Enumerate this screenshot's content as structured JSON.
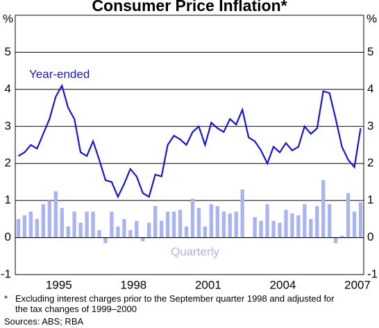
{
  "chart_data": {
    "type": "bar-line",
    "title": "Consumer Price Inflation*",
    "y_unit": "%",
    "annotations": [
      "Year-ended",
      "Quarterly"
    ],
    "footnote_marker": "*",
    "footnote": "Excluding interest charges prior to the September quarter 1998 and adjusted for the tax changes of 1999–2000",
    "source": "Sources: ABS; RBA",
    "categories": [
      null,
      null,
      null,
      null,
      null,
      null,
      null,
      "1995",
      null,
      null,
      null,
      null,
      null,
      null,
      null,
      null,
      null,
      null,
      null,
      "1998",
      null,
      null,
      null,
      null,
      null,
      null,
      null,
      null,
      null,
      null,
      null,
      "2001",
      null,
      null,
      null,
      null,
      null,
      null,
      null,
      null,
      null,
      null,
      null,
      "2004",
      null,
      null,
      null,
      null,
      null,
      null,
      null,
      null,
      null,
      null,
      null,
      "2007"
    ],
    "series": [
      {
        "name": "Quarterly",
        "type": "bar",
        "color": "#a9b4f0",
        "values": [
          0.5,
          0.6,
          0.7,
          0.5,
          0.9,
          1.0,
          1.25,
          0.8,
          0.3,
          0.7,
          0.4,
          0.7,
          0.7,
          0.2,
          -0.15,
          0.7,
          0.3,
          0.5,
          0.2,
          0.45,
          -0.1,
          0.4,
          0.85,
          0.45,
          0.7,
          0.7,
          0.75,
          0.3,
          1.05,
          0.8,
          0.3,
          0.9,
          0.85,
          0.7,
          0.65,
          0.7,
          1.3,
          0.0,
          0.55,
          0.45,
          0.9,
          0.45,
          0.4,
          0.75,
          0.65,
          0.6,
          0.9,
          0.5,
          0.85,
          1.55,
          0.9,
          -0.15,
          0.05,
          1.2,
          0.7,
          0.95
        ]
      },
      {
        "name": "Year-ended",
        "type": "line",
        "color": "#1414d2",
        "values": [
          2.2,
          2.3,
          2.5,
          2.4,
          2.8,
          3.2,
          3.8,
          4.1,
          3.5,
          3.2,
          2.3,
          2.2,
          2.6,
          2.1,
          1.55,
          1.5,
          1.1,
          1.45,
          1.85,
          1.65,
          1.2,
          1.1,
          1.7,
          1.65,
          2.5,
          2.75,
          2.65,
          2.5,
          2.85,
          3.0,
          2.5,
          3.1,
          2.95,
          2.85,
          3.2,
          3.05,
          3.45,
          2.7,
          2.6,
          2.35,
          2.0,
          2.45,
          2.3,
          2.55,
          2.35,
          2.45,
          3.0,
          2.8,
          2.95,
          3.95,
          3.9,
          3.2,
          2.45,
          2.1,
          1.9,
          2.95
        ]
      }
    ],
    "ylim": [
      -1,
      6
    ],
    "yticks": [
      -1,
      0,
      1,
      2,
      3,
      4,
      5
    ],
    "grid": true
  }
}
